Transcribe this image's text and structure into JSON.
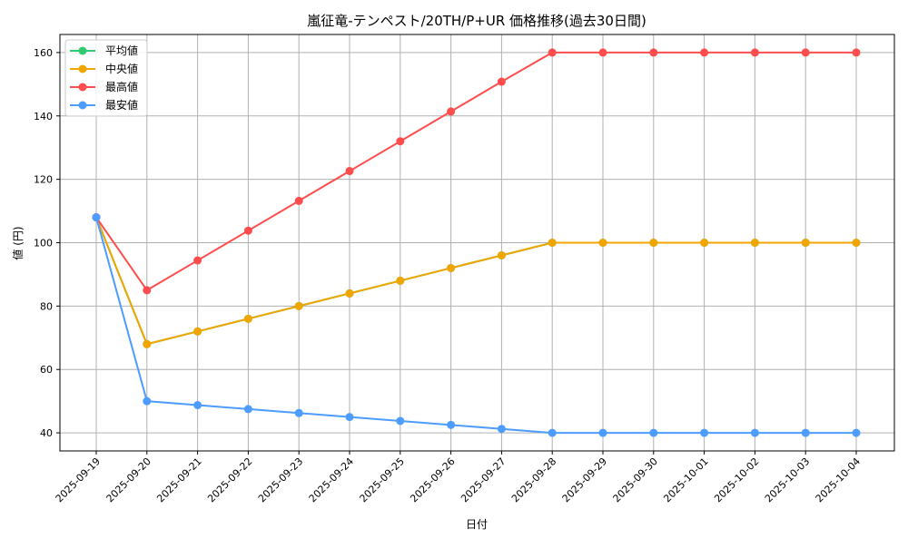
{
  "chart_data": {
    "type": "line",
    "title": "嵐征竜-テンペスト/20TH/P+UR 価格推移(過去30日間)",
    "xlabel": "日付",
    "ylabel": "値 (円)",
    "ylim": [
      34.3,
      165.7
    ],
    "yticks": [
      40,
      60,
      80,
      100,
      120,
      140,
      160
    ],
    "grid": true,
    "legend_position": "top-left",
    "x": [
      "2025-09-19",
      "2025-09-20",
      "2025-09-21",
      "2025-09-22",
      "2025-09-23",
      "2025-09-24",
      "2025-09-25",
      "2025-09-26",
      "2025-09-27",
      "2025-09-28",
      "2025-09-29",
      "2025-09-30",
      "2025-10-01",
      "2025-10-02",
      "2025-10-03",
      "2025-10-04"
    ],
    "series": [
      {
        "name": "平均値",
        "color": "#2ecc71",
        "values": [
          108,
          68,
          72,
          76,
          80,
          84,
          88,
          92,
          96,
          100,
          100,
          100,
          100,
          100,
          100,
          100
        ]
      },
      {
        "name": "中央値",
        "color": "#f0a500",
        "values": [
          108,
          68,
          72,
          76,
          80,
          84,
          88,
          92,
          96,
          100,
          100,
          100,
          100,
          100,
          100,
          100
        ]
      },
      {
        "name": "最高値",
        "color": "#ff4d4d",
        "values": [
          108,
          85,
          94.4,
          103.8,
          113.2,
          122.6,
          132,
          141.4,
          150.8,
          160,
          160,
          160,
          160,
          160,
          160,
          160
        ]
      },
      {
        "name": "最安値",
        "color": "#4d9cff",
        "values": [
          108,
          50,
          48.75,
          47.5,
          46.25,
          45,
          43.75,
          42.5,
          41.25,
          40,
          40,
          40,
          40,
          40,
          40,
          40
        ]
      }
    ]
  }
}
